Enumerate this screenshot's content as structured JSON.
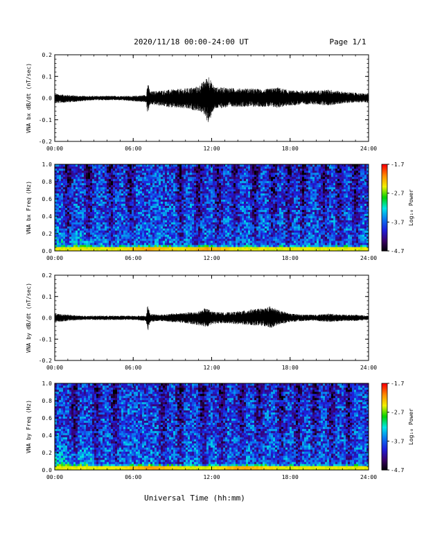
{
  "header": {
    "title": "2020/11/18  00:00-24:00 UT",
    "page": "Page 1/1"
  },
  "colors": {
    "trace": "#000000",
    "colormap": [
      "#000000",
      "#3a0068",
      "#1e1edc",
      "#0a78f0",
      "#00e6e6",
      "#00d200",
      "#f0f000",
      "#ff8c00",
      "#ff0000"
    ]
  },
  "chart_data": [
    {
      "type": "line",
      "panel_id": "bx-wave",
      "ylabel": "VNA bx dB/dt (nT/sec)",
      "ylim": [
        -0.2,
        0.2
      ],
      "yticks": [
        "0.2",
        "0.1",
        "0.0",
        "-0.1",
        "-0.2"
      ],
      "ytick_values": [
        0.2,
        0.1,
        0.0,
        -0.1,
        -0.2
      ],
      "xlim": [
        0,
        24
      ],
      "xticks": [
        "00:00",
        "06:00",
        "12:00",
        "18:00",
        "24:00"
      ],
      "envelope": {
        "hours": [
          0,
          1,
          2,
          3,
          4,
          5,
          6,
          7,
          7.1,
          7.3,
          8,
          9,
          10,
          11,
          11.5,
          11.8,
          12,
          12.3,
          13,
          14,
          15,
          16,
          17,
          18,
          19,
          20,
          21,
          22,
          23,
          24
        ],
        "max": [
          0.02,
          0.015,
          0.01,
          0.01,
          0.01,
          0.01,
          0.01,
          0.015,
          0.075,
          0.03,
          0.035,
          0.04,
          0.045,
          0.055,
          0.085,
          0.11,
          0.07,
          0.05,
          0.05,
          0.045,
          0.045,
          0.04,
          0.05,
          0.035,
          0.035,
          0.035,
          0.04,
          0.03,
          0.025,
          0.02
        ],
        "min": [
          -0.025,
          -0.02,
          -0.015,
          -0.01,
          -0.01,
          -0.01,
          -0.015,
          -0.02,
          -0.075,
          -0.03,
          -0.035,
          -0.045,
          -0.05,
          -0.06,
          -0.08,
          -0.13,
          -0.07,
          -0.05,
          -0.045,
          -0.04,
          -0.04,
          -0.04,
          -0.045,
          -0.035,
          -0.03,
          -0.03,
          -0.035,
          -0.025,
          -0.02,
          -0.02
        ]
      }
    },
    {
      "type": "heatmap",
      "panel_id": "bx-spec",
      "ylabel": "VNA bx Freq (Hz)",
      "ylim": [
        0.0,
        1.0
      ],
      "yticks": [
        "1.0",
        "0.8",
        "0.6",
        "0.4",
        "0.2",
        "0.0"
      ],
      "ytick_values": [
        1.0,
        0.8,
        0.6,
        0.4,
        0.2,
        0.0
      ],
      "xlim": [
        0,
        24
      ],
      "xticks": [
        "00:00",
        "06:00",
        "12:00",
        "18:00",
        "24:00"
      ],
      "colorbar": {
        "label": "Log₁₀ Power",
        "range": [
          -4.7,
          -1.7
        ],
        "ticks": [
          "-1.7",
          "-2.7",
          "-3.7",
          "-4.7"
        ],
        "tick_values": [
          -1.7,
          -2.7,
          -3.7,
          -4.7
        ]
      },
      "dark_band_hours": [
        1.0,
        2.6,
        4.3,
        5.8,
        9.6,
        11.0,
        12.5,
        13.8,
        15.3,
        16.7,
        17.9,
        19.0,
        20.6,
        21.8,
        23.0
      ],
      "low_freq_peak_hours": [
        7.3,
        11.6
      ]
    },
    {
      "type": "line",
      "panel_id": "by-wave",
      "ylabel": "VNA by dB/dt (nT/sec)",
      "ylim": [
        -0.2,
        0.2
      ],
      "yticks": [
        "0.2",
        "0.1",
        "0.0",
        "-0.1",
        "-0.2"
      ],
      "ytick_values": [
        0.2,
        0.1,
        0.0,
        -0.1,
        -0.2
      ],
      "xlim": [
        0,
        24
      ],
      "xticks": [
        "00:00",
        "06:00",
        "12:00",
        "18:00",
        "24:00"
      ],
      "envelope": {
        "hours": [
          0,
          1,
          2,
          3,
          4,
          5,
          6,
          7,
          7.1,
          7.3,
          8,
          9,
          10,
          11,
          11.5,
          11.8,
          12,
          13,
          14,
          15,
          16,
          16.5,
          17,
          18,
          19,
          20,
          21,
          22,
          23,
          24
        ],
        "max": [
          0.02,
          0.015,
          0.01,
          0.01,
          0.01,
          0.01,
          0.01,
          0.01,
          0.06,
          0.02,
          0.015,
          0.02,
          0.025,
          0.03,
          0.045,
          0.04,
          0.03,
          0.025,
          0.03,
          0.04,
          0.045,
          0.055,
          0.04,
          0.02,
          0.015,
          0.015,
          0.02,
          0.015,
          0.015,
          0.01
        ],
        "min": [
          -0.02,
          -0.015,
          -0.01,
          -0.01,
          -0.01,
          -0.01,
          -0.01,
          -0.015,
          -0.07,
          -0.02,
          -0.015,
          -0.02,
          -0.025,
          -0.035,
          -0.045,
          -0.04,
          -0.03,
          -0.025,
          -0.03,
          -0.035,
          -0.04,
          -0.05,
          -0.035,
          -0.02,
          -0.015,
          -0.015,
          -0.02,
          -0.015,
          -0.015,
          -0.01
        ]
      }
    },
    {
      "type": "heatmap",
      "panel_id": "by-spec",
      "ylabel": "VNA by Freq (Hz)",
      "ylim": [
        0.0,
        1.0
      ],
      "yticks": [
        "1.0",
        "0.8",
        "0.6",
        "0.4",
        "0.2",
        "0.0"
      ],
      "ytick_values": [
        1.0,
        0.8,
        0.6,
        0.4,
        0.2,
        0.0
      ],
      "xlim": [
        0,
        24
      ],
      "xticks": [
        "00:00",
        "06:00",
        "12:00",
        "18:00",
        "24:00"
      ],
      "colorbar": {
        "label": "Log₁₀ Power",
        "range": [
          -4.7,
          -1.7
        ],
        "ticks": [
          "-1.7",
          "-2.7",
          "-3.7",
          "-4.7"
        ],
        "tick_values": [
          -1.7,
          -2.7,
          -3.7,
          -4.7
        ]
      },
      "dark_band_hours": [
        1.5,
        3.2,
        4.6,
        8.3,
        9.6,
        11.3,
        12.8,
        14.3,
        15.6,
        17.3,
        18.6,
        19.9,
        21.2,
        22.5
      ],
      "low_freq_peak_hours": [
        7.3,
        14.5
      ]
    }
  ],
  "xaxis_label": "Universal Time (hh:mm)"
}
